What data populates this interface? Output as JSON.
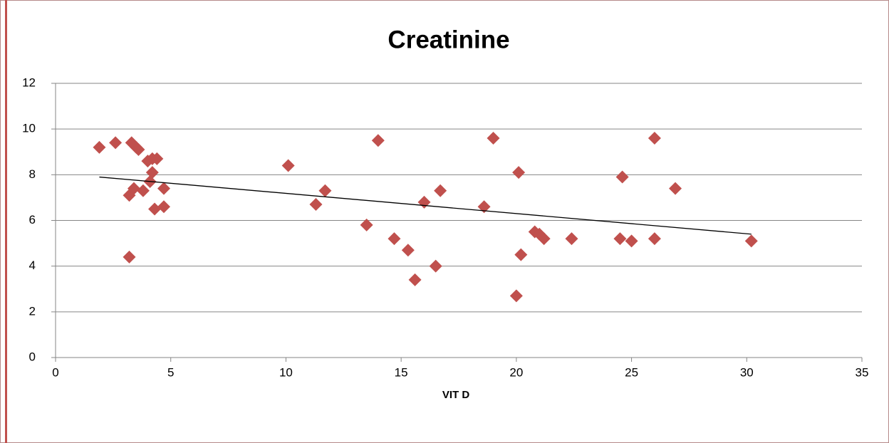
{
  "chart_data": {
    "type": "scatter",
    "title": "Creatinine",
    "xlabel": "VIT D",
    "color": "#c0504d",
    "x": [
      1.9,
      2.6,
      3.3,
      3.5,
      3.6,
      4.0,
      4.2,
      4.4,
      4.2,
      4.1,
      3.2,
      3.4,
      3.8,
      4.7,
      4.3,
      4.7,
      3.2,
      10.1,
      11.3,
      11.7,
      13.5,
      14.0,
      14.7,
      15.3,
      15.6,
      16.0,
      16.5,
      16.7,
      18.6,
      19.0,
      20.0,
      20.1,
      20.2,
      20.8,
      21.0,
      21.2,
      22.4,
      24.5,
      24.6,
      25.0,
      26.0,
      26.0,
      26.9,
      30.2
    ],
    "values": [
      9.2,
      9.4,
      9.4,
      9.2,
      9.1,
      8.6,
      8.7,
      8.7,
      8.1,
      7.7,
      7.1,
      7.4,
      7.3,
      7.4,
      6.5,
      6.6,
      4.4,
      8.4,
      6.7,
      7.3,
      5.8,
      9.5,
      5.2,
      4.7,
      3.4,
      6.8,
      4.0,
      7.3,
      6.6,
      9.6,
      2.7,
      8.1,
      4.5,
      5.5,
      5.4,
      5.2,
      5.2,
      5.2,
      7.9,
      5.1,
      9.6,
      5.2,
      7.4,
      5.1
    ],
    "trendline": {
      "x": [
        1.9,
        30.2
      ],
      "values": [
        7.9,
        5.4
      ]
    },
    "xlim": [
      0,
      35
    ],
    "xticks": [
      0,
      5,
      10,
      15,
      20,
      25,
      30,
      35
    ],
    "ylim": [
      0,
      12
    ],
    "yticks": [
      0,
      2,
      4,
      6,
      8,
      10,
      12
    ],
    "grid": true
  }
}
